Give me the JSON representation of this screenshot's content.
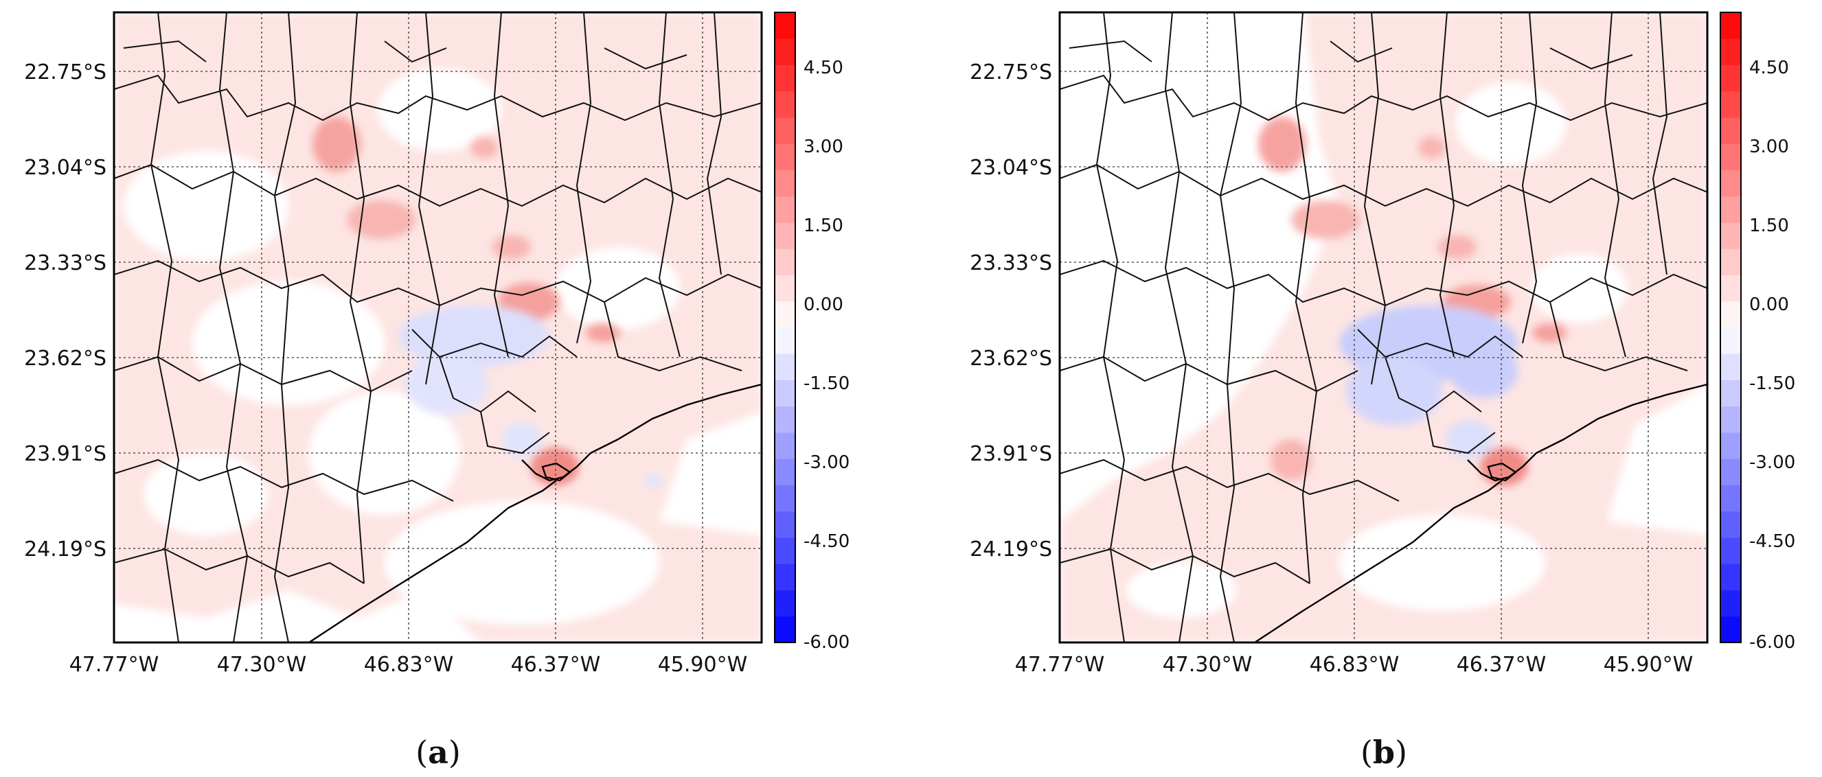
{
  "colors": {
    "negative_max": "#0000ff",
    "neutral": "#ffffff",
    "positive_max": "#ff0000",
    "light_positive": "#fde3e1",
    "light_negative": "#e2e4fd",
    "border": "#000000"
  },
  "panels": [
    {
      "id": "a",
      "label_open": "(",
      "label_letter": "a",
      "label_close": ")",
      "x_ticks": [
        "47.77°W",
        "47.30°W",
        "46.83°W",
        "46.37°W",
        "45.90°W"
      ],
      "y_ticks": [
        "22.75°S",
        "23.04°S",
        "23.33°S",
        "23.62°S",
        "23.91°S",
        "24.19°S"
      ]
    },
    {
      "id": "b",
      "label_open": "(",
      "label_letter": "b",
      "label_close": ")",
      "x_ticks": [
        "47.77°W",
        "47.30°W",
        "46.83°W",
        "46.37°W",
        "45.90°W"
      ],
      "y_ticks": [
        "22.75°S",
        "23.04°S",
        "23.33°S",
        "23.62°S",
        "23.91°S",
        "24.19°S"
      ]
    }
  ],
  "colorbar": {
    "min": -6.0,
    "max": 6.0,
    "levels": 24,
    "tick_labels": [
      "4.50",
      "3.00",
      "1.50",
      "0.00",
      "-1.50",
      "-3.00",
      "-4.50",
      "-6.00"
    ],
    "tick_values": [
      4.5,
      3.0,
      1.5,
      0.0,
      -1.5,
      -3.0,
      -4.5,
      -6.0
    ]
  }
}
